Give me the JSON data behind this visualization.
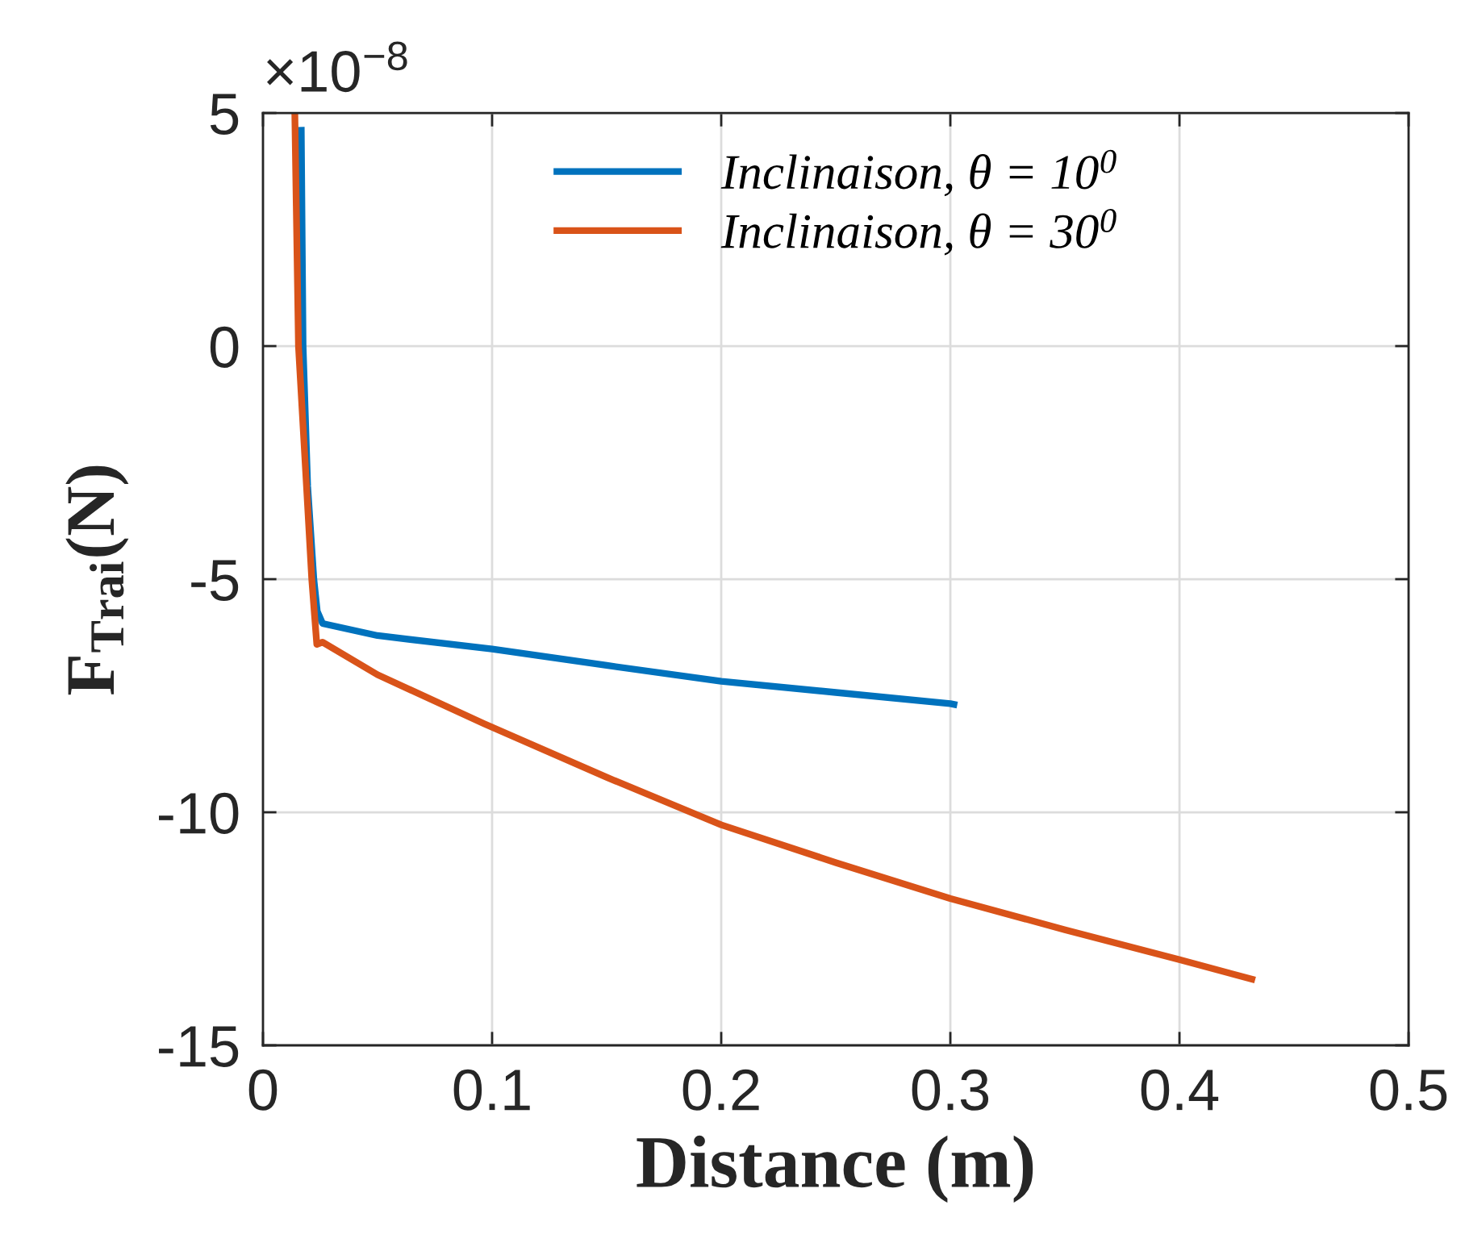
{
  "chart_data": {
    "type": "line",
    "xlabel": "Distance (m)",
    "ylabel": "F$_{Trai}$(N)",
    "annotations": [
      "×10$^{−8}$"
    ],
    "xlim": [
      0,
      0.5
    ],
    "xticks": [
      0,
      0.1,
      0.2,
      0.3,
      0.4,
      0.5
    ],
    "ylim": [
      -15,
      5
    ],
    "yticks": [
      -15,
      -10,
      -5,
      0,
      5
    ],
    "grid": true,
    "legend": "top",
    "line_style": "solid",
    "series": [
      {
        "name": "Inclinaison, θ = 10$^{0}$",
        "color": "#0072bd",
        "x": [
          0.0167,
          0.0175,
          0.0195,
          0.0222,
          0.0237,
          0.026,
          0.05,
          0.1,
          0.15,
          0.2,
          0.25,
          0.3,
          0.303
        ],
        "values": [
          4.7,
          0,
          -3,
          -5,
          -5.69,
          -5.95,
          -6.21,
          -6.5,
          -6.85,
          -7.19,
          -7.43,
          -7.67,
          -7.7
        ]
      },
      {
        "name": "Inclinaison, θ = 30$^{0}$",
        "color": "#d95319",
        "x": [
          0.0139,
          0.0155,
          0.019,
          0.0213,
          0.0235,
          0.026,
          0.05,
          0.0965,
          0.15,
          0.2,
          0.25,
          0.3,
          0.35,
          0.4,
          0.433
        ],
        "values": [
          5,
          0,
          -3,
          -5,
          -6.4,
          -6.35,
          -7.05,
          -8.1,
          -9.25,
          -10.27,
          -11.08,
          -11.85,
          -12.52,
          -13.16,
          -13.6
        ]
      }
    ]
  }
}
